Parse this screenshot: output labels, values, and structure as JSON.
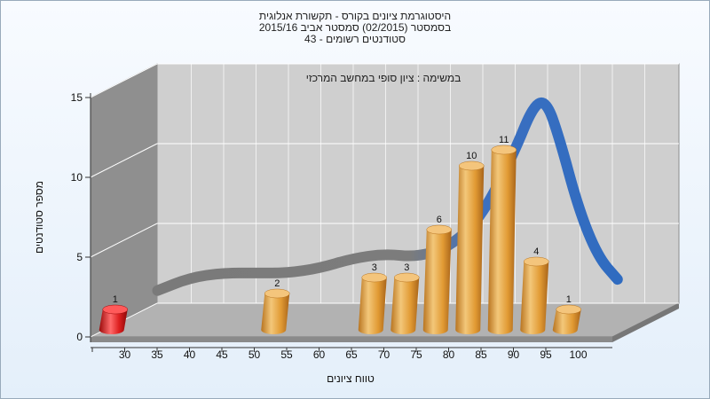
{
  "chart_data": {
    "type": "bar",
    "title_lines": [
      "היסטוגרמת ציונים בקורס - תקשורת אנלוגית",
      "בסמסטר  (02/2015)  סמסטר אביב 2015/16",
      "43 - סטודנטים רשומים"
    ],
    "subtitle": "במשימה : ציון סופי במחשב המרכזי",
    "xlabel": "טווח ציונים",
    "ylabel": "מספר סטודנטים",
    "x_ticks": [
      "30",
      "35",
      "40",
      "45",
      "50",
      "55",
      "60",
      "65",
      "70",
      "75",
      "80",
      "85",
      "90",
      "95",
      "100"
    ],
    "ylim": [
      0,
      15
    ],
    "y_ticks": [
      0,
      5,
      10,
      15
    ],
    "bars": [
      {
        "x": 32.5,
        "value": 1,
        "color": "#dd1f1f"
      },
      {
        "x": 57.5,
        "value": 2,
        "color": "#e6a13e"
      },
      {
        "x": 72.5,
        "value": 3,
        "color": "#e6a13e"
      },
      {
        "x": 77.5,
        "value": 3,
        "color": "#e6a13e"
      },
      {
        "x": 82.5,
        "value": 6,
        "color": "#e6a13e"
      },
      {
        "x": 87.5,
        "value": 10,
        "color": "#e6a13e"
      },
      {
        "x": 92.5,
        "value": 11,
        "color": "#e6a13e"
      },
      {
        "x": 97.5,
        "value": 4,
        "color": "#e6a13e"
      },
      {
        "x": 102.5,
        "value": 1,
        "color": "#e6a13e"
      }
    ],
    "trend": {
      "points": [
        [
          35,
          0.9
        ],
        [
          40,
          1.7
        ],
        [
          45,
          2.0
        ],
        [
          50,
          2.0
        ],
        [
          55,
          2.0
        ],
        [
          60,
          2.3
        ],
        [
          65,
          2.9
        ],
        [
          70,
          3.2
        ],
        [
          75,
          3.0
        ],
        [
          80,
          3.6
        ],
        [
          85,
          5.5
        ],
        [
          90,
          9.5
        ],
        [
          93,
          12.5
        ],
        [
          95,
          12.8
        ],
        [
          97,
          10.5
        ],
        [
          100,
          6
        ],
        [
          103,
          3
        ],
        [
          106,
          1.6
        ]
      ],
      "color_low": "#7d7d7d",
      "color_high": "#2f6bc0"
    },
    "grid": true,
    "colors": {
      "back_wall": "#cfcfcf",
      "side_wall": "#8f8f8f",
      "floor": "#b2b2b2",
      "grid": "#ffffff"
    }
  }
}
